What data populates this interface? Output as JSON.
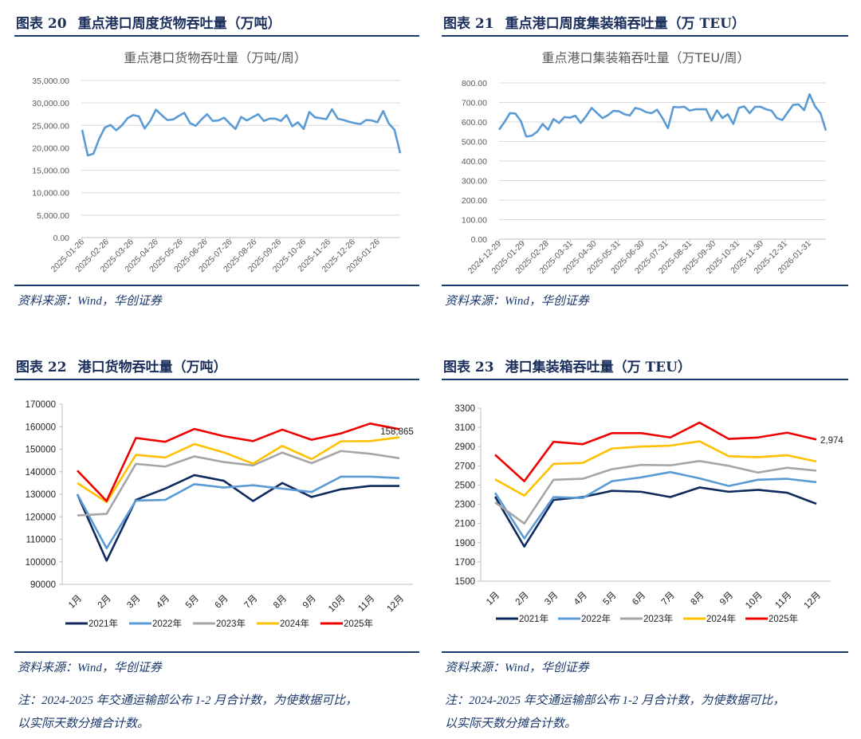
{
  "figures": [
    {
      "label": "图表 20",
      "title": "重点港口周度货物吞吐量（万吨）",
      "source": "资料来源：Wind，华创证券"
    },
    {
      "label": "图表 21",
      "title": "重点港口周度集装箱吞吐量（万 TEU）",
      "source": "资料来源：Wind，华创证券"
    },
    {
      "label": "图表 22",
      "title": "港口货物吞吐量（万吨）",
      "source": "资料来源：Wind，华创证券",
      "note_line1": "注：2024-2025 年交通运输部公布 1-2 月合计数，为使数据可比，",
      "note_line2": "以实际天数分摊合计数。"
    },
    {
      "label": "图表 23",
      "title": "港口集装箱吞吐量（万 TEU）",
      "source": "资料来源：Wind，华创证券",
      "note_line1": "注：2024-2025 年交通运输部公布 1-2 月合计数，为使数据可比，",
      "note_line2": "以实际天数分摊合计数。"
    }
  ],
  "chart_data": [
    {
      "type": "line",
      "title": "重点港口货物吞吐量（万吨/周）",
      "ylim": [
        0,
        35000
      ],
      "yticks": [
        "0.00",
        "5,000.00",
        "10,000.00",
        "15,000.00",
        "20,000.00",
        "25,000.00",
        "30,000.00",
        "35,000.00"
      ],
      "xtick_labels": [
        "2025-01-26",
        "2025-02-26",
        "2025-03-26",
        "2025-04-26",
        "2025-05-26",
        "2025-06-26",
        "2025-07-26",
        "2025-08-26",
        "2025-09-26",
        "2025-10-26",
        "2025-11-26",
        "2025-12-26",
        "2026-01-26"
      ],
      "grid": true,
      "color": "#5b9bd5",
      "values": [
        24000,
        18300,
        18700,
        22000,
        24500,
        25100,
        23900,
        25000,
        26600,
        27300,
        27000,
        24300,
        26000,
        28500,
        27300,
        26200,
        26300,
        27100,
        27800,
        25500,
        24900,
        26300,
        27500,
        26000,
        26100,
        26700,
        25400,
        24200,
        26900,
        26100,
        26800,
        27500,
        26000,
        26500,
        26500,
        26000,
        27300,
        24800,
        25700,
        24200,
        28000,
        26800,
        26600,
        26400,
        28600,
        26500,
        26200,
        25800,
        25500,
        25300,
        26200,
        26100,
        25700,
        28200,
        25400,
        24000,
        18800
      ]
    },
    {
      "type": "line",
      "title": "重点港口集装箱吞吐量（万TEU/周）",
      "ylim": [
        0,
        800
      ],
      "yticks": [
        "0.00",
        "100.00",
        "200.00",
        "300.00",
        "400.00",
        "500.00",
        "600.00",
        "700.00",
        "800.00"
      ],
      "xtick_labels": [
        "2024-12-29",
        "2025-01-29",
        "2025-02-28",
        "2025-03-31",
        "2025-04-30",
        "2025-05-31",
        "2025-06-30",
        "2025-07-31",
        "2025-08-31",
        "2025-09-30",
        "2025-10-31",
        "2025-11-30",
        "2025-12-31",
        "2026-01-31"
      ],
      "grid": true,
      "color": "#5b9bd5",
      "values": [
        560,
        600,
        645,
        643,
        605,
        525,
        530,
        550,
        590,
        560,
        615,
        595,
        625,
        622,
        632,
        595,
        630,
        672,
        645,
        620,
        635,
        657,
        655,
        640,
        633,
        672,
        665,
        650,
        645,
        663,
        620,
        568,
        677,
        675,
        678,
        658,
        665,
        665,
        665,
        607,
        660,
        620,
        640,
        590,
        672,
        680,
        645,
        678,
        678,
        665,
        658,
        620,
        610,
        650,
        688,
        690,
        660,
        742,
        680,
        645,
        556
      ]
    },
    {
      "type": "line",
      "categories": [
        "1月",
        "2月",
        "3月",
        "4月",
        "5月",
        "6月",
        "7月",
        "8月",
        "9月",
        "10月",
        "11月",
        "12月"
      ],
      "ylim": [
        90000,
        170000
      ],
      "yticks": [
        "90000",
        "100000",
        "110000",
        "120000",
        "130000",
        "140000",
        "150000",
        "160000",
        "170000"
      ],
      "legend": "bottom",
      "annotation": "158,865",
      "series": [
        {
          "name": "2021年",
          "color": "#0e2a5c",
          "values": [
            130000,
            100500,
            127500,
            132500,
            138500,
            136000,
            127000,
            135000,
            128800,
            132200,
            133700,
            133700
          ]
        },
        {
          "name": "2022年",
          "color": "#5b9bd5",
          "values": [
            130000,
            106000,
            127200,
            127500,
            134500,
            133000,
            134000,
            132500,
            131000,
            137800,
            137800,
            137200
          ]
        },
        {
          "name": "2023年",
          "color": "#a5a5a5",
          "values": [
            120600,
            121300,
            143500,
            142300,
            146800,
            144300,
            142800,
            148500,
            143800,
            149200,
            148000,
            146000
          ]
        },
        {
          "name": "2024年",
          "color": "#ffc000",
          "values": [
            135000,
            126500,
            147500,
            146300,
            152300,
            148600,
            143600,
            151500,
            145600,
            153500,
            153600,
            155300
          ]
        },
        {
          "name": "2025年",
          "color": "#ee0000",
          "values": [
            140500,
            127000,
            155000,
            153300,
            159000,
            155800,
            153600,
            158700,
            154200,
            157000,
            161400,
            158865
          ]
        }
      ]
    },
    {
      "type": "line",
      "categories": [
        "1月",
        "2月",
        "3月",
        "4月",
        "5月",
        "6月",
        "7月",
        "8月",
        "9月",
        "10月",
        "11月",
        "12月"
      ],
      "ylim": [
        1500,
        3300
      ],
      "yticks": [
        "1500",
        "1700",
        "1900",
        "2100",
        "2300",
        "2500",
        "2700",
        "2900",
        "3100",
        "3300"
      ],
      "legend": "bottom",
      "annotation": "2,974",
      "series": [
        {
          "name": "2021年",
          "color": "#0e2a5c",
          "values": [
            2380,
            1860,
            2345,
            2375,
            2440,
            2430,
            2375,
            2475,
            2430,
            2450,
            2420,
            2305
          ]
        },
        {
          "name": "2022年",
          "color": "#5b9bd5",
          "values": [
            2420,
            1945,
            2375,
            2365,
            2540,
            2580,
            2635,
            2570,
            2490,
            2555,
            2565,
            2530
          ]
        },
        {
          "name": "2023年",
          "color": "#a5a5a5",
          "values": [
            2320,
            2100,
            2555,
            2565,
            2665,
            2710,
            2705,
            2750,
            2700,
            2630,
            2680,
            2650
          ]
        },
        {
          "name": "2024年",
          "color": "#ffc000",
          "values": [
            2560,
            2390,
            2720,
            2730,
            2880,
            2900,
            2910,
            2955,
            2800,
            2790,
            2810,
            2745
          ]
        },
        {
          "name": "2025年",
          "color": "#ee0000",
          "values": [
            2815,
            2540,
            2950,
            2925,
            3040,
            3040,
            2995,
            3150,
            2980,
            2995,
            3045,
            2974
          ]
        }
      ]
    }
  ]
}
